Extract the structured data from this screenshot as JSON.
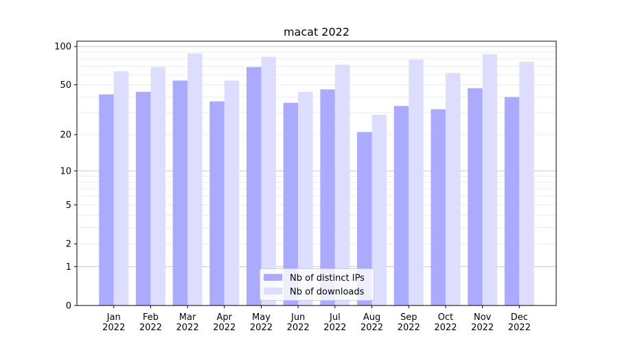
{
  "chart_data": {
    "type": "bar",
    "title": "macat 2022",
    "xlabel": "",
    "ylabel": "",
    "y_scale": "log10(1+y)",
    "ylim": [
      0,
      110
    ],
    "y_ticks": [
      0,
      1,
      2,
      5,
      10,
      20,
      50,
      100
    ],
    "grid": true,
    "legend_position": "lower center",
    "categories": [
      "Jan\n2022",
      "Feb\n2022",
      "Mar\n2022",
      "Apr\n2022",
      "May\n2022",
      "Jun\n2022",
      "Jul\n2022",
      "Aug\n2022",
      "Sep\n2022",
      "Oct\n2022",
      "Nov\n2022",
      "Dec\n2022"
    ],
    "series": [
      {
        "name": "Nb of distinct IPs",
        "color": "#aaaaff",
        "values": [
          42,
          44,
          54,
          37,
          69,
          36,
          46,
          21,
          34,
          32,
          47,
          40
        ]
      },
      {
        "name": "Nb of downloads",
        "color": "#ddddff",
        "values": [
          64,
          69,
          88,
          54,
          83,
          44,
          72,
          29,
          79,
          62,
          87,
          76
        ]
      }
    ]
  }
}
